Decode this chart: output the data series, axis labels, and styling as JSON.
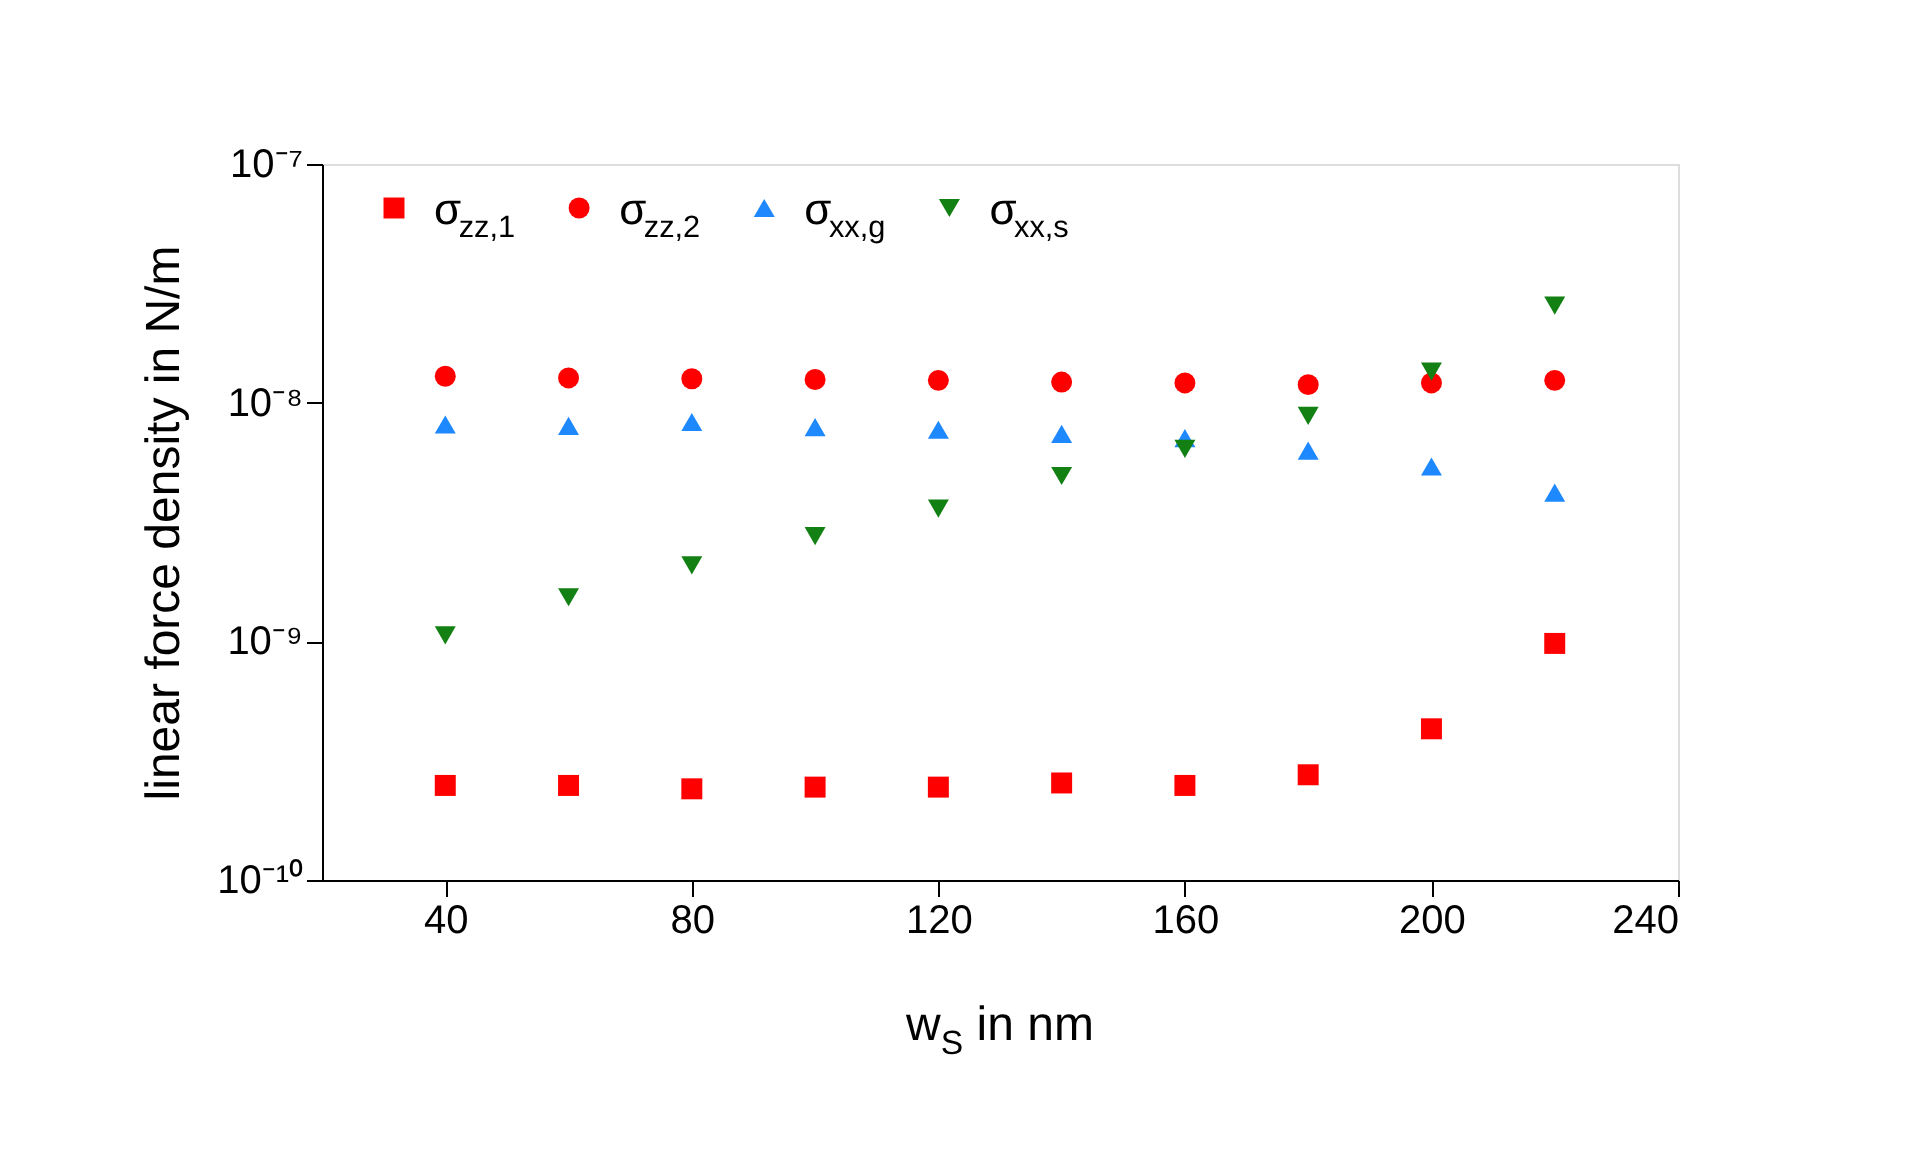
{
  "chart_data": {
    "type": "scatter",
    "xlabel": "w$_{S}$ in nm",
    "ylabel": "linear force density in N/m",
    "x": [
      40,
      60,
      80,
      100,
      120,
      140,
      160,
      180,
      200,
      220
    ],
    "series": [
      {
        "name": "σ$_{zz,1}$",
        "color": "#ff0000",
        "marker": "square",
        "values": [
          2.49e-10,
          2.49e-10,
          2.41e-10,
          2.45e-10,
          2.45e-10,
          2.55e-10,
          2.49e-10,
          2.76e-10,
          4.3e-10,
          9.8e-10
        ]
      },
      {
        "name": "σ$_{zz,2}$",
        "color": "#ff0000",
        "marker": "circle",
        "values": [
          1.29e-08,
          1.27e-08,
          1.26e-08,
          1.25e-08,
          1.24e-08,
          1.22e-08,
          1.21e-08,
          1.19e-08,
          1.21e-08,
          1.24e-08
        ]
      },
      {
        "name": "σ$_{xx,g}$",
        "color": "#1e88ff",
        "marker": "triangle",
        "values": [
          8.1e-09,
          8e-09,
          8.3e-09,
          7.9e-09,
          7.7e-09,
          7.4e-09,
          7.1e-09,
          6.3e-09,
          5.4e-09,
          4.2e-09
        ]
      },
      {
        "name": "σ$_{xx,s}$",
        "color": "#138013",
        "marker": "triangle-down",
        "values": [
          1.06e-09,
          1.53e-09,
          2.08e-09,
          2.76e-09,
          3.6e-09,
          4.93e-09,
          6.4e-09,
          8.8e-09,
          1.35e-08,
          2.55e-08
        ]
      }
    ],
    "xlim": [
      20,
      240
    ],
    "xticks": [
      40,
      80,
      120,
      160,
      200,
      240
    ],
    "log": true,
    "ylim": [
      1e-10,
      1e-07
    ],
    "yticks": [
      {
        "value": 1e-10,
        "label": "10⁻¹⁰"
      },
      {
        "value": 1e-09,
        "label": "10⁻⁹"
      },
      {
        "value": 1e-08,
        "label": "10⁻⁸"
      },
      {
        "value": 1e-07,
        "label": "10⁻⁷"
      }
    ],
    "grid": false,
    "legend": "top left"
  }
}
